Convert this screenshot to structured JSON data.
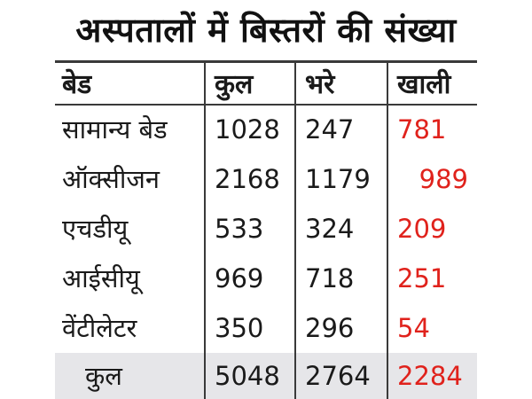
{
  "title": "अस्पतालों में बिस्तरों की संख्या",
  "header": {
    "col1": "बेड",
    "col2": "कुल",
    "col3": "भरे",
    "col4": "खाली"
  },
  "rows": [
    {
      "bed": "सामान्य बेड",
      "total": "1028",
      "filled": "247",
      "free": "781"
    },
    {
      "bed": "ऑक्सीजन",
      "total": "2168",
      "filled": "1179",
      "free": "989"
    },
    {
      "bed": "एचडीयू",
      "total": "533",
      "filled": "324",
      "free": "209"
    },
    {
      "bed": "आईसीयू",
      "total": "969",
      "filled": "718",
      "free": "251"
    },
    {
      "bed": "वेंटीलेटर",
      "total": "350",
      "filled": "296",
      "free": "54"
    }
  ],
  "total_row": {
    "label": "कुल",
    "total": "5048",
    "filled": "2764",
    "free": "2284"
  },
  "colors": {
    "free_value": "#e0221c",
    "total_row_bg": "#e6e6e9",
    "rule": "#3a3a3a"
  }
}
